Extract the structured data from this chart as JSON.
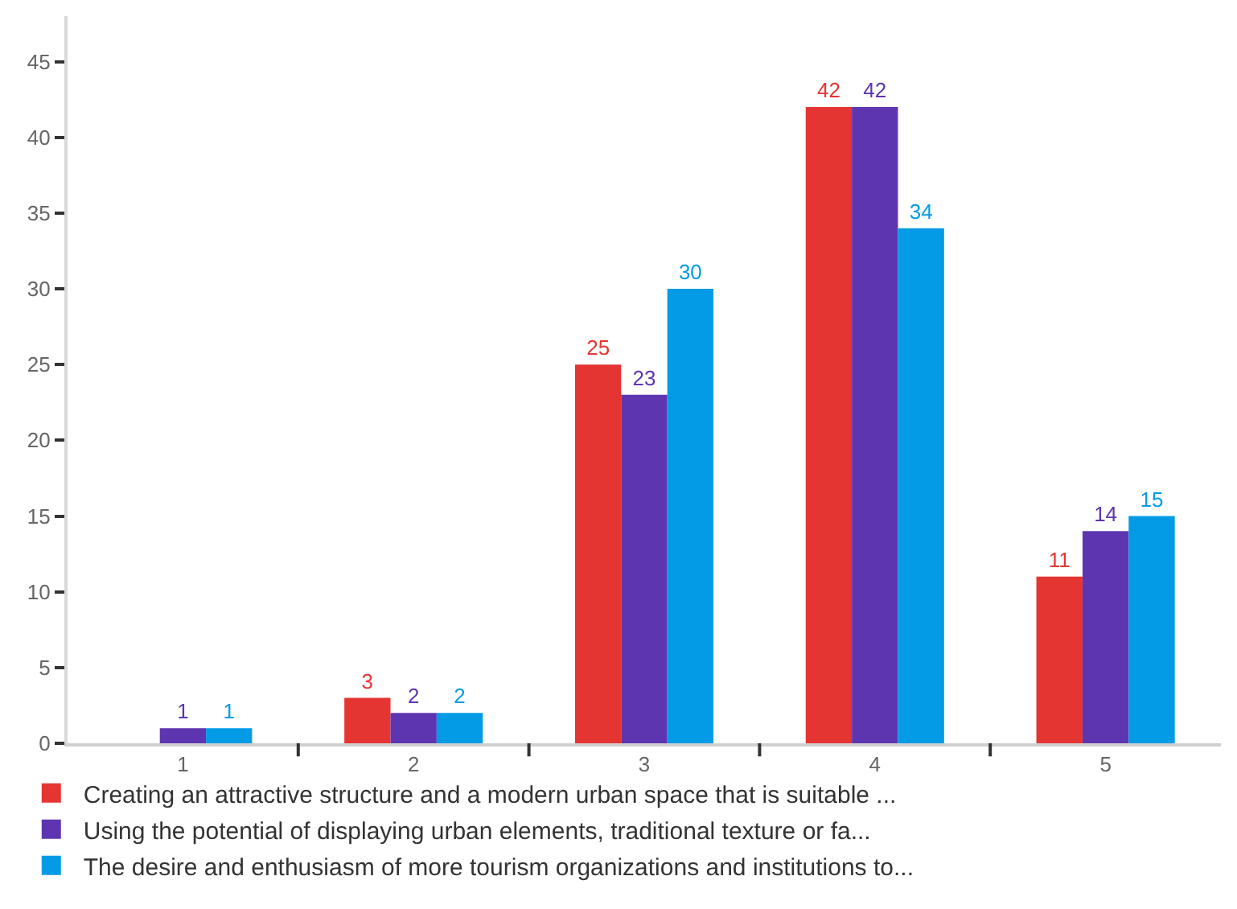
{
  "chart_data": {
    "type": "bar",
    "categories": [
      "1",
      "2",
      "3",
      "4",
      "5"
    ],
    "series": [
      {
        "name": "Creating an attractive structure and a modern urban space that is suitable ...",
        "color": "#e53532",
        "values": [
          null,
          3,
          25,
          42,
          11
        ]
      },
      {
        "name": "Using the potential of displaying urban elements, traditional texture or fa...",
        "color": "#5e35b1",
        "values": [
          1,
          2,
          23,
          42,
          14
        ]
      },
      {
        "name": "The desire and enthusiasm of more tourism organizations and institutions to...",
        "color": "#039be5",
        "values": [
          1,
          2,
          30,
          34,
          15
        ]
      }
    ],
    "ylim": [
      0,
      48
    ],
    "yticks": [
      0,
      5,
      10,
      15,
      20,
      25,
      30,
      35,
      40,
      45
    ],
    "data_labels": true,
    "grid": false,
    "legend": "bottom left"
  }
}
